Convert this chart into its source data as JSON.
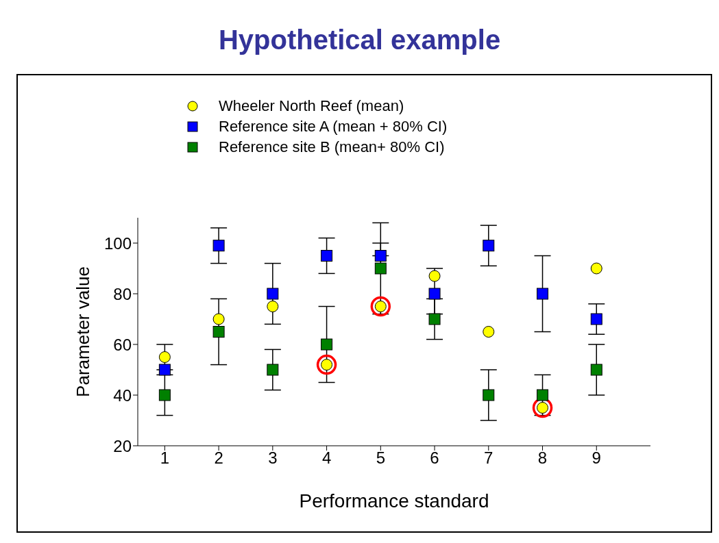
{
  "chart_data": {
    "type": "scatter",
    "title": "Hypothetical example",
    "xlabel": "Performance standard",
    "ylabel": "Parameter value",
    "x": [
      1,
      2,
      3,
      4,
      5,
      6,
      7,
      8,
      9
    ],
    "xlim": [
      0.5,
      10
    ],
    "xticks": [
      1,
      2,
      3,
      4,
      5,
      6,
      7,
      8,
      9
    ],
    "ylim": [
      20,
      110
    ],
    "yticks": [
      20,
      40,
      60,
      80,
      100
    ],
    "grid": false,
    "legend": "top left",
    "series": [
      {
        "color": "#ff0000",
        "marker": "circle",
        "values": [
          null,
          null,
          null,
          52,
          75,
          null,
          null,
          35,
          null
        ]
      },
      {
        "name": "Wheeler North Reef (mean)",
        "color": "#ffff00",
        "marker": "circle",
        "values": [
          55,
          70,
          75,
          52,
          75,
          87,
          65,
          35,
          90
        ]
      },
      {
        "name": "Reference site A (mean + 80% CI)",
        "color": "#0000ff",
        "marker": "square",
        "values": [
          50,
          99,
          80,
          95,
          95,
          80,
          99,
          80,
          70
        ],
        "errors": [
          [
            50,
            60
          ],
          [
            92,
            106
          ],
          [
            68,
            92
          ],
          [
            88,
            102
          ],
          [
            95,
            108
          ],
          [
            72,
            90
          ],
          [
            91,
            107
          ],
          [
            65,
            95
          ],
          [
            64,
            76
          ]
        ]
      },
      {
        "name": "Reference site B (mean+ 80% CI)",
        "color": "#008000",
        "marker": "square",
        "values": [
          40,
          65,
          50,
          60,
          90,
          70,
          40,
          40,
          50
        ],
        "errors": [
          [
            32,
            48
          ],
          [
            52,
            78
          ],
          [
            42,
            58
          ],
          [
            45,
            75
          ],
          [
            72,
            100
          ],
          [
            62,
            78
          ],
          [
            30,
            50
          ],
          [
            32,
            48
          ],
          [
            40,
            60
          ]
        ]
      }
    ]
  }
}
